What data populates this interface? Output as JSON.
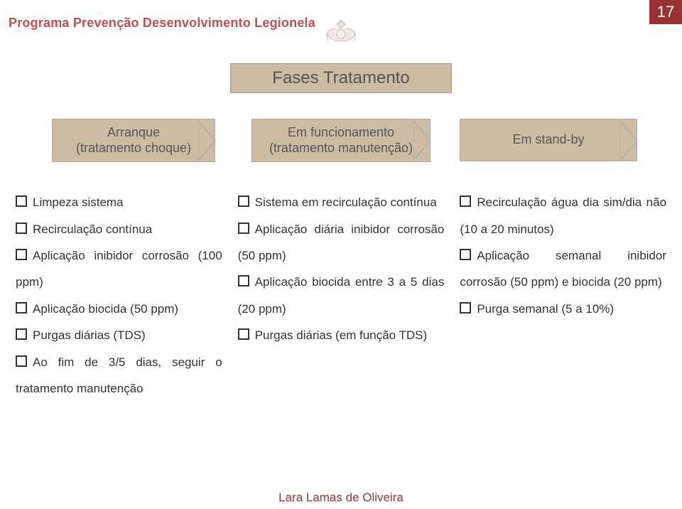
{
  "page_number": "17",
  "program_title": "Programa Prevenção Desenvolvimento Legionela",
  "section_title": "Fases Tratamento",
  "tabs": [
    {
      "line1": "Arranque",
      "line2": "(tratamento choque)"
    },
    {
      "line1": "Em funcionamento",
      "line2": "(tratamento manutenção)"
    },
    {
      "line1": "Em stand-by",
      "line2": ""
    }
  ],
  "col1": [
    "Limpeza sistema",
    "Recirculação contínua",
    "Aplicação inibidor corrosão (100 ppm)",
    "Aplicação biocida (50 ppm)",
    "Purgas diárias (TDS)",
    "Ao fim de 3/5 dias, seguir o tratamento manutenção"
  ],
  "col2": [
    "Sistema em recirculação contínua",
    "Aplicação diária inibidor corrosão (50 ppm)",
    "Aplicação biocida entre 3 a 5 dias (20 ppm)",
    "Purgas diárias (em função TDS)"
  ],
  "col3": [
    "Recirculação água dia sim/dia não (10 a 20 minutos)",
    "Aplicação semanal inibidor corrosão (50 ppm) e biocida (20 ppm)",
    "Purga semanal (5 a 10%)"
  ],
  "footer": "Lara Lamas de Oliveira",
  "colors": {
    "accent_dark": "#993333",
    "accent_text": "#c05050",
    "band_bg": "#cdbba4",
    "body_text": "#333333"
  }
}
